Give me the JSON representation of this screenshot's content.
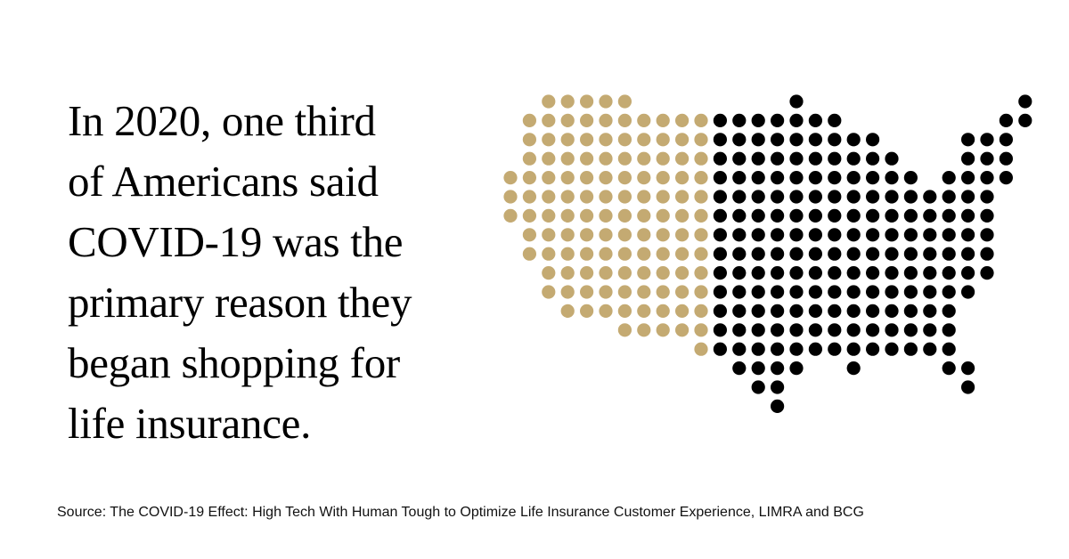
{
  "headline": {
    "lines": [
      "In 2020, one third",
      "of Americans said",
      "COVID-19 was the",
      "primary reason they",
      "began shopping for",
      "life insurance."
    ]
  },
  "dot_map": {
    "subject": "United States dot map",
    "highlight_share": "one third",
    "colors": {
      "highlight": "#C4AA72",
      "base": "#000000"
    }
  },
  "source": {
    "text": "Source: The COVID-19 Effect: High Tech With Human Tough to Optimize Life Insurance Customer Experience, LIMRA and BCG"
  }
}
